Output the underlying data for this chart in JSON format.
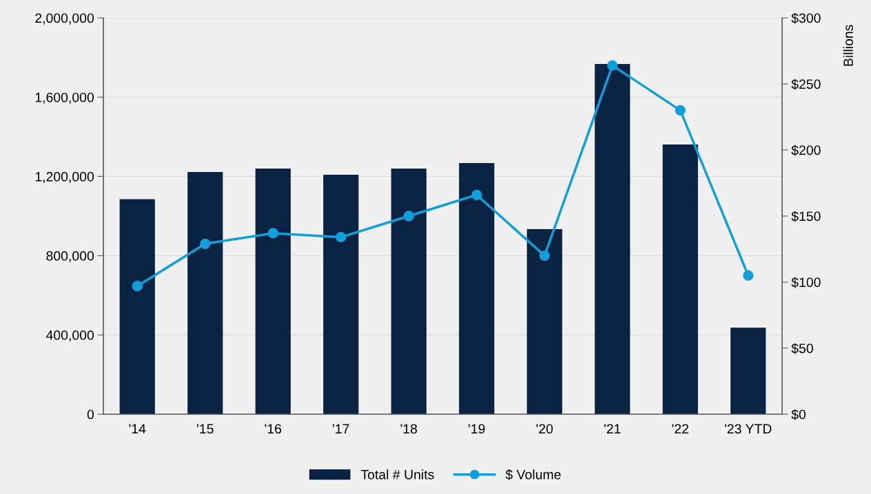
{
  "chart_data": {
    "type": "bar",
    "y2label": "Billions",
    "categories": [
      "'14",
      "'15",
      "'16",
      "'17",
      "'18",
      "'19",
      "'20",
      "'21",
      "'22",
      "'23 YTD"
    ],
    "series": [
      {
        "name": "Total # Units",
        "color": "#0a2342",
        "values": [
          1085000,
          1222000,
          1240000,
          1208000,
          1240000,
          1267000,
          934000,
          1767000,
          1361000,
          437000
        ]
      },
      {
        "name": "$ Volume",
        "type": "line",
        "axis": "y2",
        "color": "#119fdc",
        "marker": "circle",
        "values": [
          97,
          129,
          137,
          134,
          150,
          166,
          120,
          264,
          230,
          105
        ]
      }
    ],
    "ylim": [
      0,
      2000000
    ],
    "yticks": [
      {
        "value": 0,
        "label": "0"
      },
      {
        "value": 400000,
        "label": "400,000"
      },
      {
        "value": 800000,
        "label": "800,000"
      },
      {
        "value": 1200000,
        "label": "1,200,000"
      },
      {
        "value": 1600000,
        "label": "1,600,000"
      },
      {
        "value": 2000000,
        "label": "2,000,000"
      }
    ],
    "y2lim": [
      0,
      300
    ],
    "y2ticks": [
      {
        "value": 0,
        "label": "$0"
      },
      {
        "value": 50,
        "label": "$50"
      },
      {
        "value": 100,
        "label": "$100"
      },
      {
        "value": 150,
        "label": "$150"
      },
      {
        "value": 200,
        "label": "$200"
      },
      {
        "value": 250,
        "label": "$250"
      },
      {
        "value": 300,
        "label": "$300"
      }
    ],
    "grid": "y",
    "legend": "bottom"
  }
}
